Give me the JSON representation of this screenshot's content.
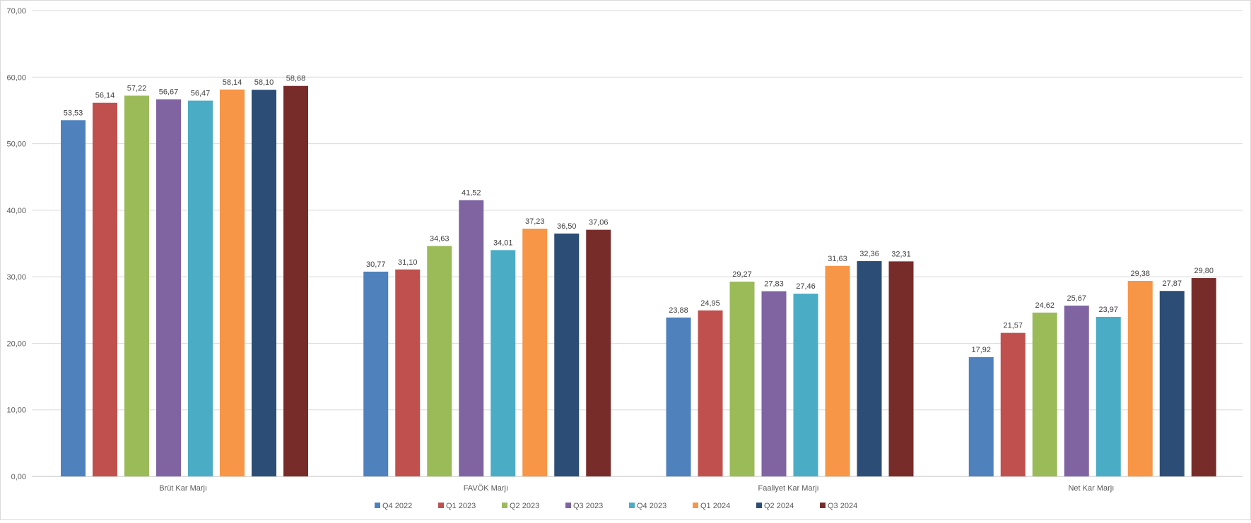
{
  "chart_data": {
    "type": "bar",
    "title": "",
    "xlabel": "",
    "ylabel": "",
    "ylim": [
      0,
      70
    ],
    "yticks": [
      "0,00",
      "10,00",
      "20,00",
      "30,00",
      "40,00",
      "50,00",
      "60,00",
      "70,00"
    ],
    "grid": true,
    "legend_position": "bottom",
    "categories": [
      "Brüt Kar Marjı",
      "FAVÖK Marjı",
      "Faaliyet Kar Marjı",
      "Net Kar Marjı"
    ],
    "series": [
      {
        "name": "Q4 2022",
        "color": "#4f81bd",
        "values": [
          53.53,
          30.77,
          23.88,
          17.92
        ],
        "labels": [
          "53,53",
          "30,77",
          "23,88",
          "17,92"
        ]
      },
      {
        "name": "Q1 2023",
        "color": "#c0504d",
        "values": [
          56.14,
          31.1,
          24.95,
          21.57
        ],
        "labels": [
          "56,14",
          "31,10",
          "24,95",
          "21,57"
        ]
      },
      {
        "name": "Q2 2023",
        "color": "#9bbb59",
        "values": [
          57.22,
          34.63,
          29.27,
          24.62
        ],
        "labels": [
          "57,22",
          "34,63",
          "29,27",
          "24,62"
        ]
      },
      {
        "name": "Q3 2023",
        "color": "#8064a2",
        "values": [
          56.67,
          41.52,
          27.83,
          25.67
        ],
        "labels": [
          "56,67",
          "41,52",
          "27,83",
          "25,67"
        ]
      },
      {
        "name": "Q4 2023",
        "color": "#4bacc6",
        "values": [
          56.47,
          34.01,
          27.46,
          23.97
        ],
        "labels": [
          "56,47",
          "34,01",
          "27,46",
          "23,97"
        ]
      },
      {
        "name": "Q1 2024",
        "color": "#f79646",
        "values": [
          58.14,
          37.23,
          31.63,
          29.38
        ],
        "labels": [
          "58,14",
          "37,23",
          "31,63",
          "29,38"
        ]
      },
      {
        "name": "Q2 2024",
        "color": "#2c4d75",
        "values": [
          58.1,
          36.5,
          32.36,
          27.87
        ],
        "labels": [
          "58,10",
          "36,50",
          "32,36",
          "27,87"
        ]
      },
      {
        "name": "Q3 2024",
        "color": "#772c2a",
        "values": [
          58.68,
          37.06,
          32.31,
          29.8
        ],
        "labels": [
          "58,68",
          "37,06",
          "32,31",
          "29,80"
        ]
      }
    ]
  }
}
